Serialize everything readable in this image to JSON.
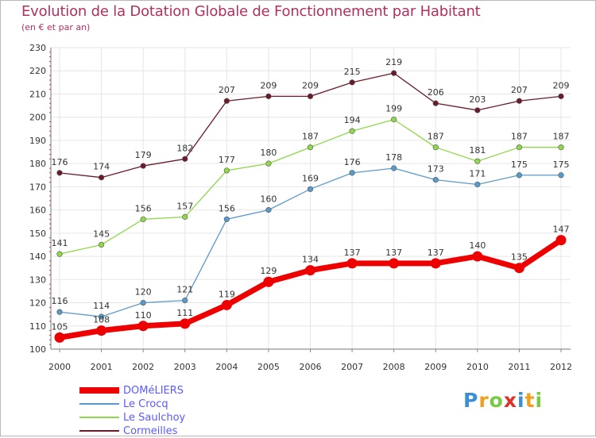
{
  "chart_data": {
    "type": "line",
    "title": "Evolution de la Dotation Globale de Fonctionnement par Habitant",
    "subtitle": "(en € et par an)",
    "xlabel": "",
    "ylabel": "",
    "categories": [
      "2000",
      "2001",
      "2002",
      "2003",
      "2004",
      "2005",
      "2006",
      "2007",
      "2008",
      "2009",
      "2010",
      "2011",
      "2012"
    ],
    "ylim": [
      100,
      230
    ],
    "yticks": [
      100,
      110,
      120,
      130,
      140,
      150,
      160,
      170,
      180,
      190,
      200,
      210,
      220,
      230
    ],
    "grid": true,
    "legend_position": "bottom-left",
    "series": [
      {
        "name": "Cormeilles",
        "color": "#6b1a2a",
        "values": [
          176,
          174,
          179,
          182,
          207,
          209,
          209,
          215,
          219,
          206,
          203,
          207,
          209
        ]
      },
      {
        "name": "Le Saulchoy",
        "color": "#8ed84a",
        "values": [
          141,
          145,
          156,
          157,
          177,
          180,
          187,
          194,
          199,
          187,
          181,
          187,
          187
        ]
      },
      {
        "name": "Le Crocq",
        "color": "#5a9ac8",
        "values": [
          116,
          114,
          120,
          121,
          156,
          160,
          169,
          176,
          178,
          173,
          171,
          175,
          175
        ]
      },
      {
        "name": "DOMéLIERS",
        "color": "#ee0000",
        "values": [
          105,
          108,
          110,
          111,
          119,
          129,
          134,
          137,
          137,
          137,
          140,
          135,
          147
        ]
      }
    ]
  },
  "legend": {
    "items": [
      {
        "name": "DOMéLIERS",
        "color": "#ee0000"
      },
      {
        "name": "Le Crocq",
        "color": "#5a9ac8"
      },
      {
        "name": "Le Saulchoy",
        "color": "#8ed84a"
      },
      {
        "name": "Cormeilles",
        "color": "#6b1a2a"
      }
    ]
  },
  "logo": {
    "letters": [
      "P",
      "r",
      "o",
      "x",
      "i",
      "t",
      "i"
    ],
    "colors": [
      "#3a8fd6",
      "#f0a020",
      "#7ac943",
      "#e0302a",
      "#3a8fd6",
      "#f0a020",
      "#7ac943"
    ]
  }
}
